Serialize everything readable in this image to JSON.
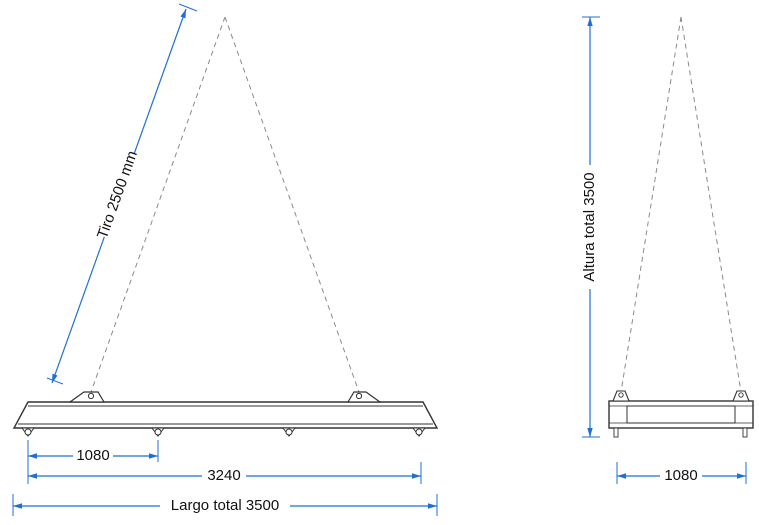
{
  "colors": {
    "dimension": "#1f6fd6",
    "beam": "#333333",
    "sling": "#8a8a8a",
    "text": "#111111"
  },
  "side_view": {
    "sling_label": "Tiro 2500 mm",
    "dim_lug_spacing": "1080",
    "dim_beam_span": "3240",
    "dim_overall_length": "Largo total 3500"
  },
  "end_view": {
    "height_label": "Altura total 3500",
    "dim_width": "1080"
  }
}
